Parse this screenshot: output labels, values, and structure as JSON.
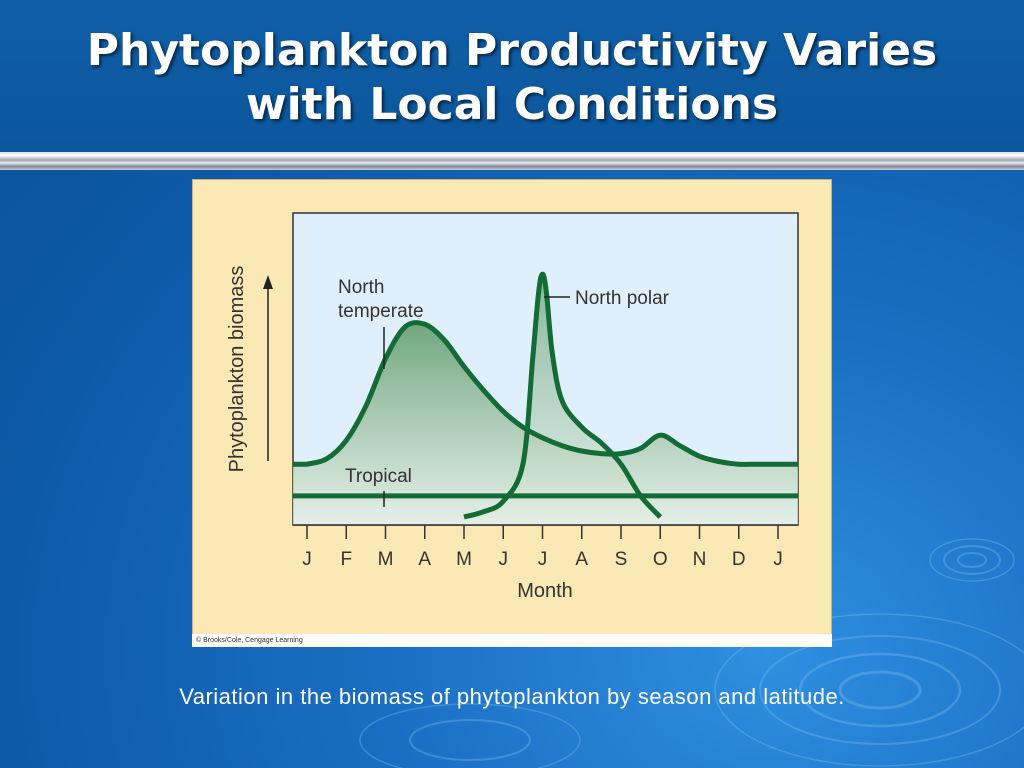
{
  "slide": {
    "title_line1": "Phytoplankton Productivity Varies",
    "title_line2": "with Local Conditions",
    "caption": "Variation in the biomass of phytoplankton by season and latitude.",
    "credit": "© Brooks/Cole, Cengage Learning"
  },
  "colors": {
    "header_blue": "#0c569c",
    "panel_bg": "#fbe9b5",
    "plot_bg": "#dff0fc",
    "curve": "#136b35",
    "fill_light": "#e6efe3",
    "fill_dark": "#5e9a6a"
  },
  "chart_data": {
    "type": "line",
    "title": "",
    "xlabel": "Month",
    "ylabel": "Phytoplankton biomass",
    "x_ticks": [
      "J",
      "F",
      "M",
      "A",
      "M",
      "J",
      "J",
      "A",
      "S",
      "O",
      "N",
      "D",
      "J"
    ],
    "xlim": [
      0,
      12
    ],
    "ylim": [
      0,
      100
    ],
    "grid": false,
    "series": [
      {
        "name": "North temperate",
        "x": [
          0,
          0.5,
          1,
          1.5,
          2,
          2.5,
          3,
          3.5,
          4,
          4.5,
          5,
          5.5,
          6,
          6.5,
          7,
          7.5,
          8,
          8.5,
          9,
          9.5,
          10,
          10.5,
          11,
          11.5,
          12
        ],
        "values": [
          20,
          22,
          29,
          42,
          60,
          72,
          73,
          67,
          57,
          48,
          40,
          34,
          30,
          27,
          25,
          24,
          24,
          26,
          31,
          27,
          23,
          21,
          20,
          20,
          20
        ]
      },
      {
        "name": "North polar",
        "x": [
          4,
          4.5,
          5,
          5.5,
          5.75,
          5.9,
          6,
          6.1,
          6.25,
          6.5,
          7,
          7.5,
          8,
          8.5,
          9
        ],
        "values": [
          0,
          2,
          6,
          20,
          60,
          85,
          92,
          85,
          62,
          44,
          34,
          28,
          20,
          8,
          0
        ]
      },
      {
        "name": "Tropical",
        "x": [
          0,
          3,
          6,
          9,
          12
        ],
        "values": [
          8,
          8,
          8,
          8,
          8
        ]
      }
    ]
  }
}
